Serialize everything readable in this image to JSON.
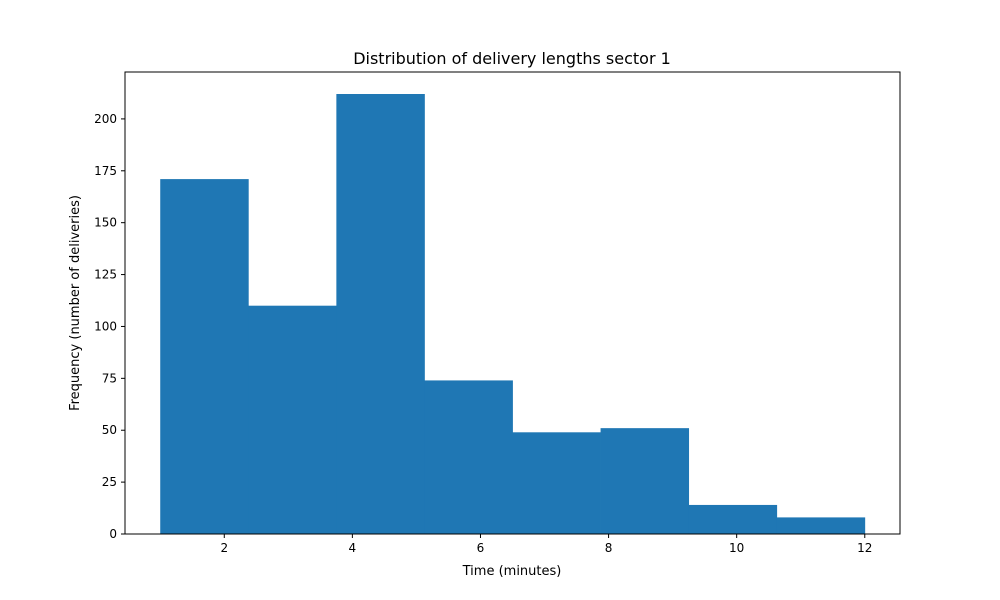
{
  "chart_data": {
    "type": "bar",
    "title": "Distribution of delivery lengths sector 1",
    "xlabel": "Time (minutes)",
    "ylabel": "Frequency (number of deliveries)",
    "bin_edges": [
      1.0,
      2.375,
      3.75,
      5.125,
      6.5,
      7.875,
      9.25,
      10.625,
      12.0
    ],
    "values": [
      171,
      110,
      212,
      74,
      49,
      51,
      14,
      8
    ],
    "xlim": [
      0.45,
      12.55
    ],
    "ylim": [
      0,
      222.6
    ],
    "x_ticks": [
      2,
      4,
      6,
      8,
      10,
      12
    ],
    "y_ticks": [
      0,
      25,
      50,
      75,
      100,
      125,
      150,
      175,
      200
    ],
    "bar_color": "#1f77b4",
    "grid": false,
    "legend": "none"
  }
}
